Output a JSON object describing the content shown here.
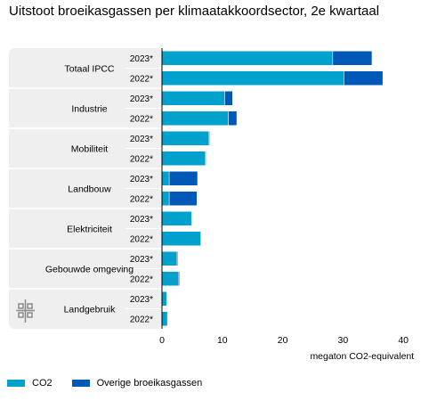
{
  "title": "Uitstoot broeikasgassen per klimaatakkoordsector, 2e kwartaal",
  "logo": "cbs-logo-icon",
  "colors": {
    "co2": "#00a1cd",
    "overige": "#0058b8",
    "group_panel": "#efefef",
    "axis": "#000000"
  },
  "chart_data": {
    "type": "bar",
    "orientation": "horizontal",
    "stacked": true,
    "title": "Uitstoot broeikasgassen per klimaatakkoordsector, 2e kwartaal",
    "xlabel": "megaton CO2-equivalent",
    "xlim": [
      0,
      40
    ],
    "xticks": [
      0,
      10,
      20,
      30,
      40
    ],
    "grid": false,
    "legend_position": "bottom",
    "series_names": [
      "CO2",
      "Overige broeikasgassen"
    ],
    "groups": [
      {
        "name": "Totaal IPCC",
        "rows": [
          {
            "label": "2023*",
            "values": [
              28.3,
              6.5
            ]
          },
          {
            "label": "2022*",
            "values": [
              30.2,
              6.4
            ]
          }
        ]
      },
      {
        "name": "Industrie",
        "rows": [
          {
            "label": "2023*",
            "values": [
              10.4,
              1.3
            ]
          },
          {
            "label": "2022*",
            "values": [
              11.0,
              1.4
            ]
          }
        ]
      },
      {
        "name": "Mobiliteit",
        "rows": [
          {
            "label": "2023*",
            "values": [
              7.8,
              0.1
            ]
          },
          {
            "label": "2022*",
            "values": [
              7.2,
              0.1
            ]
          }
        ]
      },
      {
        "name": "Landbouw",
        "rows": [
          {
            "label": "2023*",
            "values": [
              1.2,
              4.7
            ]
          },
          {
            "label": "2022*",
            "values": [
              1.2,
              4.6
            ]
          }
        ]
      },
      {
        "name": "Elektriciteit",
        "rows": [
          {
            "label": "2023*",
            "values": [
              4.9,
              0.1
            ]
          },
          {
            "label": "2022*",
            "values": [
              6.4,
              0.1
            ]
          }
        ]
      },
      {
        "name": "Gebouwde omgeving",
        "rows": [
          {
            "label": "2023*",
            "values": [
              2.4,
              0.2
            ]
          },
          {
            "label": "2022*",
            "values": [
              2.7,
              0.2
            ]
          }
        ]
      },
      {
        "name": "Landgebruik",
        "rows": [
          {
            "label": "2023*",
            "values": [
              0.8,
              0.0
            ]
          },
          {
            "label": "2022*",
            "values": [
              0.9,
              0.0
            ]
          }
        ]
      }
    ]
  }
}
